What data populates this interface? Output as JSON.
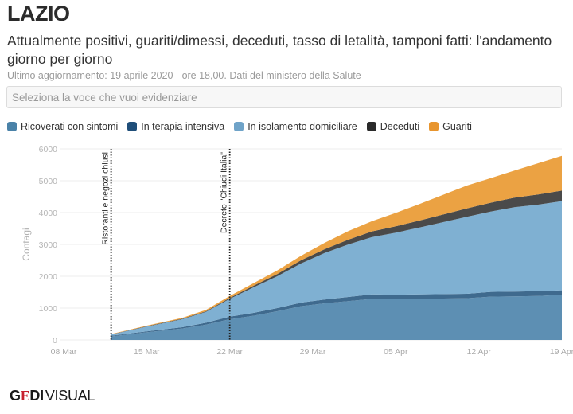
{
  "header": {
    "title": "LAZIO",
    "subtitle": "Attualmente positivi, guariti/dimessi, deceduti, tasso di letalità, tamponi fatti: l'andamento giorno per giorno",
    "updated": "Ultimo aggiornamento: 19 aprile 2020 - ore 18,00. Dati del ministero della Salute"
  },
  "select": {
    "placeholder": "Seleziona la voce che vuoi evidenziare"
  },
  "legend": [
    {
      "label": "Ricoverati con sintomi",
      "color": "#4a82a8"
    },
    {
      "label": "In terapia intensiva",
      "color": "#1f4e79"
    },
    {
      "label": "In isolamento domiciliare",
      "color": "#6fa3c8"
    },
    {
      "label": "Deceduti",
      "color": "#2a2a2a"
    },
    {
      "label": "Guariti",
      "color": "#e8952e"
    }
  ],
  "logo": {
    "g": "G",
    "e": "E",
    "di": "DI",
    "visual": "VISUAL"
  },
  "chart_data": {
    "type": "area",
    "stacked": true,
    "title": "",
    "xlabel": "",
    "ylabel": "Contagi",
    "ylim": [
      0,
      6000
    ],
    "yticks": [
      0,
      1000,
      2000,
      3000,
      4000,
      5000,
      6000
    ],
    "xlim_days": [
      0,
      42
    ],
    "xticks": [
      {
        "day": 0,
        "label": "08 Mar"
      },
      {
        "day": 7,
        "label": "15 Mar"
      },
      {
        "day": 14,
        "label": "22 Mar"
      },
      {
        "day": 21,
        "label": "29 Mar"
      },
      {
        "day": 28,
        "label": "05 Apr"
      },
      {
        "day": 35,
        "label": "12 Apr"
      },
      {
        "day": 42,
        "label": "19 Apr"
      }
    ],
    "grid": true,
    "legend_position": "top-left",
    "annotations": [
      {
        "day": 4,
        "label": "Ristoranti e negozi chiusi"
      },
      {
        "day": 14,
        "label": "Decreto \"Chiudi Italia\""
      }
    ],
    "x": [
      4,
      7,
      10,
      12,
      14,
      16,
      18,
      20,
      22,
      24,
      26,
      28,
      30,
      32,
      34,
      36,
      38,
      40,
      42
    ],
    "series": [
      {
        "name": "Ricoverati con sintomi",
        "color": "#5d8fb3",
        "values": [
          110,
          240,
          360,
          480,
          650,
          760,
          900,
          1060,
          1150,
          1220,
          1290,
          1280,
          1290,
          1300,
          1310,
          1360,
          1370,
          1380,
          1420
        ]
      },
      {
        "name": "In terapia intensiva",
        "color": "#3f6a8e",
        "values": [
          20,
          30,
          40,
          60,
          80,
          90,
          100,
          110,
          120,
          130,
          140,
          140,
          140,
          140,
          140,
          150,
          150,
          150,
          140
        ]
      },
      {
        "name": "In isolamento domiciliare",
        "color": "#7fb0d2",
        "values": [
          40,
          150,
          250,
          340,
          560,
          800,
          1000,
          1230,
          1460,
          1650,
          1800,
          1950,
          2100,
          2260,
          2420,
          2520,
          2650,
          2720,
          2800
        ]
      },
      {
        "name": "Deceduti",
        "color": "#4a4a4a",
        "values": [
          5,
          10,
          15,
          20,
          30,
          50,
          70,
          100,
          120,
          150,
          180,
          200,
          220,
          240,
          260,
          280,
          300,
          320,
          330
        ]
      },
      {
        "name": "Guariti",
        "color": "#eba243",
        "values": [
          10,
          20,
          30,
          45,
          60,
          80,
          110,
          140,
          200,
          270,
          320,
          420,
          520,
          620,
          720,
          770,
          850,
          980,
          1090
        ]
      }
    ]
  }
}
